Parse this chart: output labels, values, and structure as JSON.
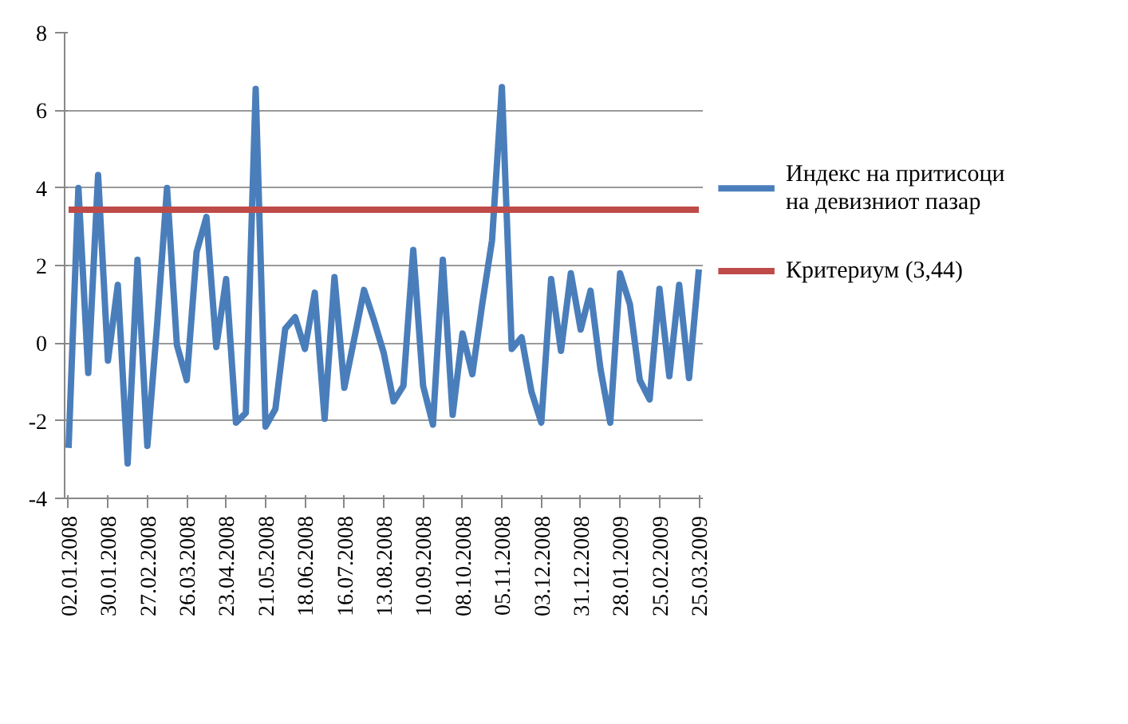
{
  "chart_data": {
    "type": "line",
    "categories": [
      "02.01.2008",
      null,
      null,
      null,
      "30.01.2008",
      null,
      null,
      null,
      "27.02.2008",
      null,
      null,
      null,
      "26.03.2008",
      null,
      null,
      null,
      "23.04.2008",
      null,
      null,
      null,
      "21.05.2008",
      null,
      null,
      null,
      "18.06.2008",
      null,
      null,
      null,
      "16.07.2008",
      null,
      null,
      null,
      "13.08.2008",
      null,
      null,
      null,
      "10.09.2008",
      null,
      null,
      null,
      "08.10.2008",
      null,
      null,
      null,
      "05.11.2008",
      null,
      null,
      null,
      "03.12.2008",
      null,
      null,
      null,
      "31.12.2008",
      null,
      null,
      null,
      "28.01.2009",
      null,
      null,
      null,
      "25.02.2009",
      null,
      null,
      null,
      "25.03.2009"
    ],
    "series": [
      {
        "name": "Индекс на притисоци на девизниот пазар",
        "color": "#4a7ebb",
        "values": [
          -2.7,
          4.0,
          -0.77,
          4.33,
          -0.45,
          1.5,
          -3.1,
          2.15,
          -2.65,
          0.5,
          4.0,
          -0.05,
          -0.95,
          2.35,
          3.25,
          -0.1,
          1.65,
          -2.05,
          -1.8,
          6.55,
          -2.15,
          -1.7,
          0.37,
          0.67,
          -0.15,
          1.3,
          -1.95,
          1.7,
          -1.15,
          0.1,
          1.37,
          0.6,
          -0.25,
          -1.5,
          -1.1,
          2.4,
          -1.1,
          -2.1,
          2.15,
          -1.85,
          0.25,
          -0.8,
          1.0,
          2.65,
          6.6,
          -0.15,
          0.15,
          -1.25,
          -2.05,
          1.65,
          -0.2,
          1.8,
          0.35,
          1.35,
          -0.65,
          -2.05,
          1.8,
          1.0,
          -0.95,
          -1.45,
          1.4,
          -0.85,
          1.5,
          -0.9,
          1.9
        ]
      },
      {
        "name": "Критериум (3,44)",
        "color": "#be4b48",
        "values": [
          3.44,
          3.44,
          3.44,
          3.44,
          3.44,
          3.44,
          3.44,
          3.44,
          3.44,
          3.44,
          3.44,
          3.44,
          3.44,
          3.44,
          3.44,
          3.44,
          3.44,
          3.44,
          3.44,
          3.44,
          3.44,
          3.44,
          3.44,
          3.44,
          3.44,
          3.44,
          3.44,
          3.44,
          3.44,
          3.44,
          3.44,
          3.44,
          3.44,
          3.44,
          3.44,
          3.44,
          3.44,
          3.44,
          3.44,
          3.44,
          3.44,
          3.44,
          3.44,
          3.44,
          3.44,
          3.44,
          3.44,
          3.44,
          3.44,
          3.44,
          3.44,
          3.44,
          3.44,
          3.44,
          3.44,
          3.44,
          3.44,
          3.44,
          3.44,
          3.44,
          3.44,
          3.44,
          3.44,
          3.44,
          3.44
        ]
      }
    ],
    "ylim": [
      -4,
      8
    ],
    "yticks": [
      -4,
      -2,
      0,
      2,
      4,
      6,
      8
    ],
    "grid": "y",
    "legend": "right",
    "marker": "none",
    "line_style": "solid"
  }
}
